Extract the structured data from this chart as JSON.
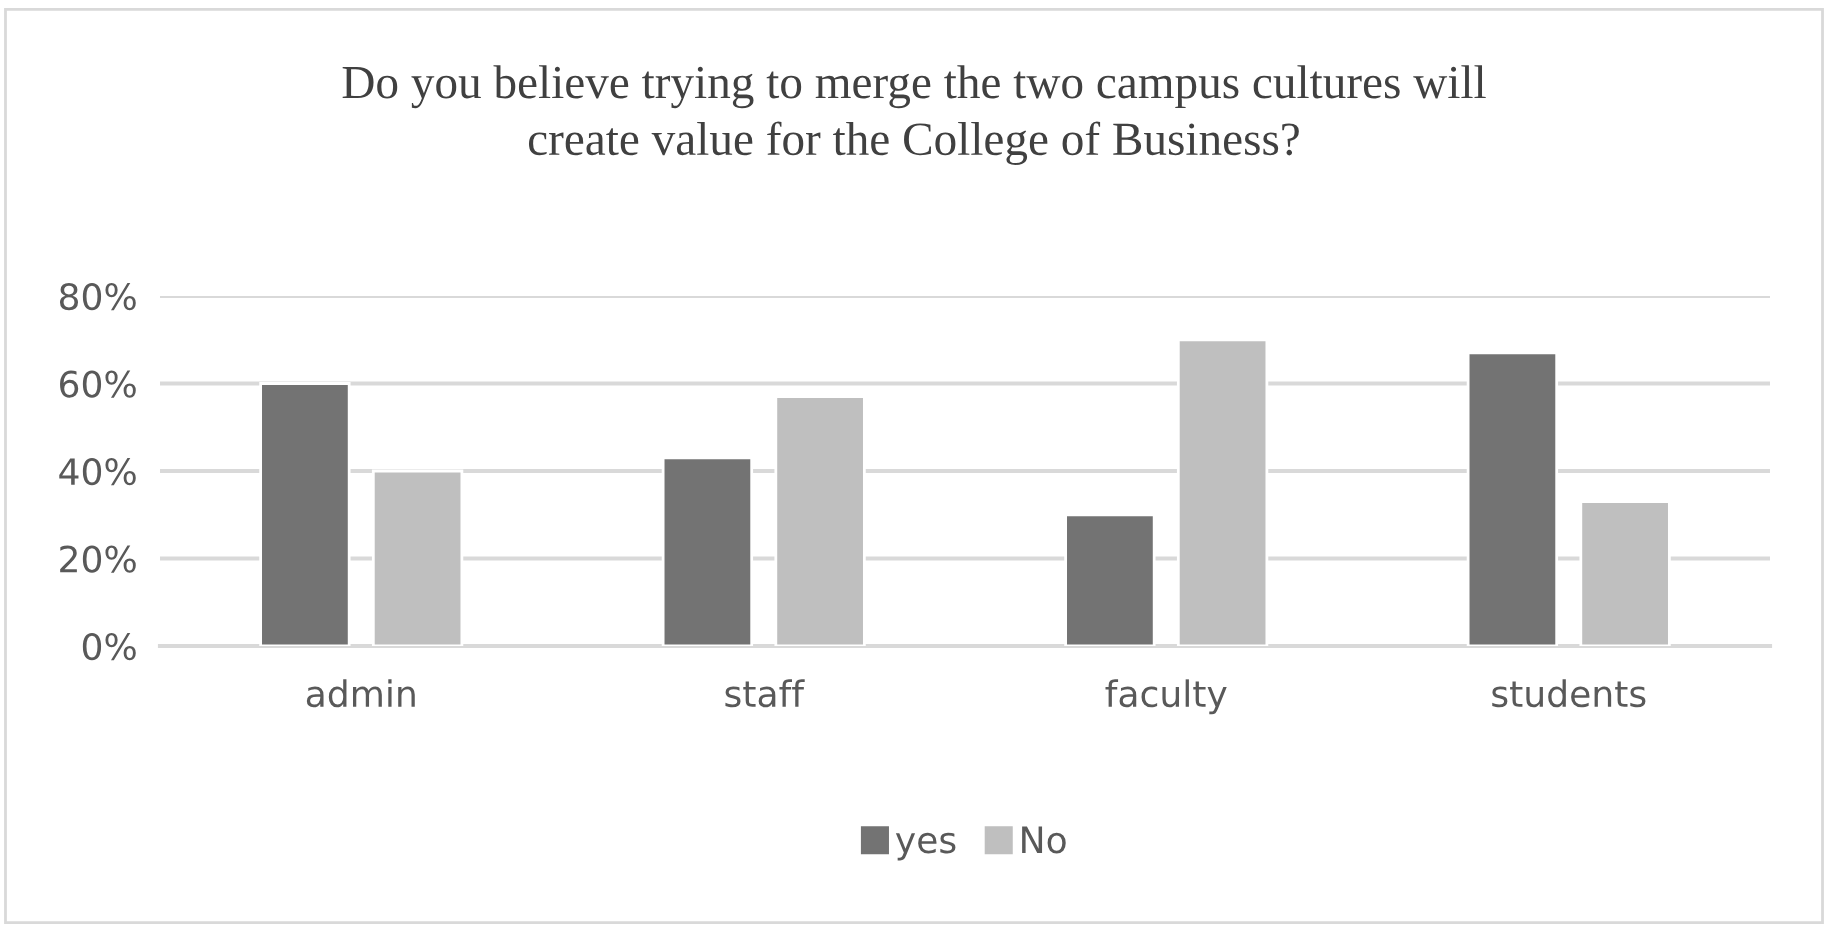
{
  "chart_data": {
    "type": "bar",
    "title": "Do you believe trying to merge the two campus cultures will\ncreate value for the College of Business?",
    "categories": [
      "admin",
      "staff",
      "faculty",
      "students"
    ],
    "series": [
      {
        "name": "yes",
        "color": "#737373",
        "values": [
          60,
          43,
          30,
          67
        ]
      },
      {
        "name": "No",
        "color": "#bfbfbf",
        "values": [
          40,
          57,
          70,
          33
        ]
      }
    ],
    "ylim": [
      0,
      80
    ],
    "yticks": [
      {
        "value": 0,
        "label": "0%"
      },
      {
        "value": 20,
        "label": "20%"
      },
      {
        "value": 40,
        "label": "40%"
      },
      {
        "value": 60,
        "label": "60%"
      },
      {
        "value": 80,
        "label": "80%"
      }
    ],
    "grid": "y",
    "legend": "bottom"
  }
}
